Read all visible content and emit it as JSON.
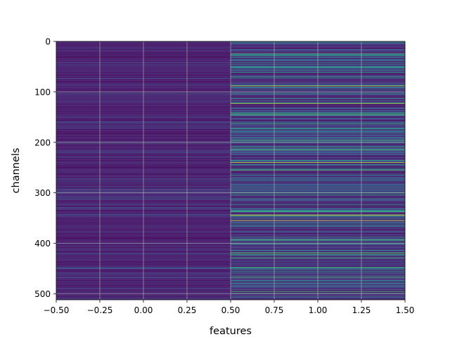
{
  "chart_data": {
    "type": "heatmap",
    "title": "",
    "xlabel": "features",
    "ylabel": "channels",
    "xlim": [
      -0.5,
      1.5
    ],
    "ylim": [
      512,
      0
    ],
    "y_axis_inverted": true,
    "grid": true,
    "colormap": "viridis",
    "x_ticks": [
      -0.5,
      -0.25,
      0.0,
      0.25,
      0.5,
      0.75,
      1.0,
      1.25,
      1.5
    ],
    "x_tick_labels": [
      "−0.50",
      "−0.25",
      "0.00",
      "0.25",
      "0.50",
      "0.75",
      "1.00",
      "1.25",
      "1.50"
    ],
    "y_ticks": [
      0,
      100,
      200,
      300,
      400,
      500
    ],
    "y_tick_labels": [
      "0",
      "100",
      "200",
      "300",
      "400",
      "500"
    ],
    "columns": [
      {
        "feature": 0,
        "note": "mostly low values (dark purple) with faint bluish streaks"
      },
      {
        "feature": 1,
        "note": "more varied values with frequent teal/blue rows and bright yellow-green rows"
      }
    ],
    "highlight_rows": [
      {
        "feature": 1,
        "channel": 24,
        "level": 0.72
      },
      {
        "feature": 1,
        "channel": 88,
        "level": 0.95
      },
      {
        "feature": 1,
        "channel": 123,
        "level": 0.9
      },
      {
        "feature": 1,
        "channel": 240,
        "level": 0.92
      },
      {
        "feature": 1,
        "channel": 344,
        "level": 0.95
      },
      {
        "feature": 1,
        "channel": 355,
        "level": 0.93
      },
      {
        "feature": 1,
        "channel": 420,
        "level": 0.78
      },
      {
        "feature": 1,
        "channel": 468,
        "level": 0.7
      },
      {
        "feature": 1,
        "channel": 496,
        "level": 0.72
      }
    ],
    "colors": {
      "low": "#440154",
      "mid": "#21918c",
      "high": "#fde725",
      "grid": "#b0b0b0"
    }
  }
}
